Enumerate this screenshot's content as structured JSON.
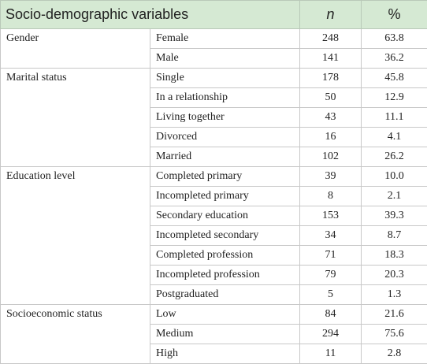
{
  "table": {
    "header": [
      "Socio-demographic variables",
      "n",
      "%"
    ],
    "groups": [
      {
        "label": "Gender",
        "rows": [
          [
            "Female",
            "248",
            "63.8"
          ],
          [
            "Male",
            "141",
            "36.2"
          ]
        ]
      },
      {
        "label": "Marital status",
        "rows": [
          [
            "Single",
            "178",
            "45.8"
          ],
          [
            "In a relationship",
            "50",
            "12.9"
          ],
          [
            "Living together",
            "43",
            "11.1"
          ],
          [
            "Divorced",
            "16",
            "4.1"
          ],
          [
            "Married",
            "102",
            "26.2"
          ]
        ]
      },
      {
        "label": "Education level",
        "rows": [
          [
            "Completed primary",
            "39",
            "10.0"
          ],
          [
            "Incompleted primary",
            "8",
            "2.1"
          ],
          [
            "Secondary education",
            "153",
            "39.3"
          ],
          [
            "Incompleted secondary",
            "34",
            "8.7"
          ],
          [
            "Completed profession",
            "71",
            "18.3"
          ],
          [
            "Incompleted profession",
            "79",
            "20.3"
          ],
          [
            "Postgraduated",
            "5",
            "1.3"
          ]
        ]
      },
      {
        "label": "Socioeconomic status",
        "rows": [
          [
            "Low",
            "84",
            "21.6"
          ],
          [
            "Medium",
            "294",
            "75.6"
          ],
          [
            "High",
            "11",
            "2.8"
          ]
        ]
      }
    ]
  }
}
